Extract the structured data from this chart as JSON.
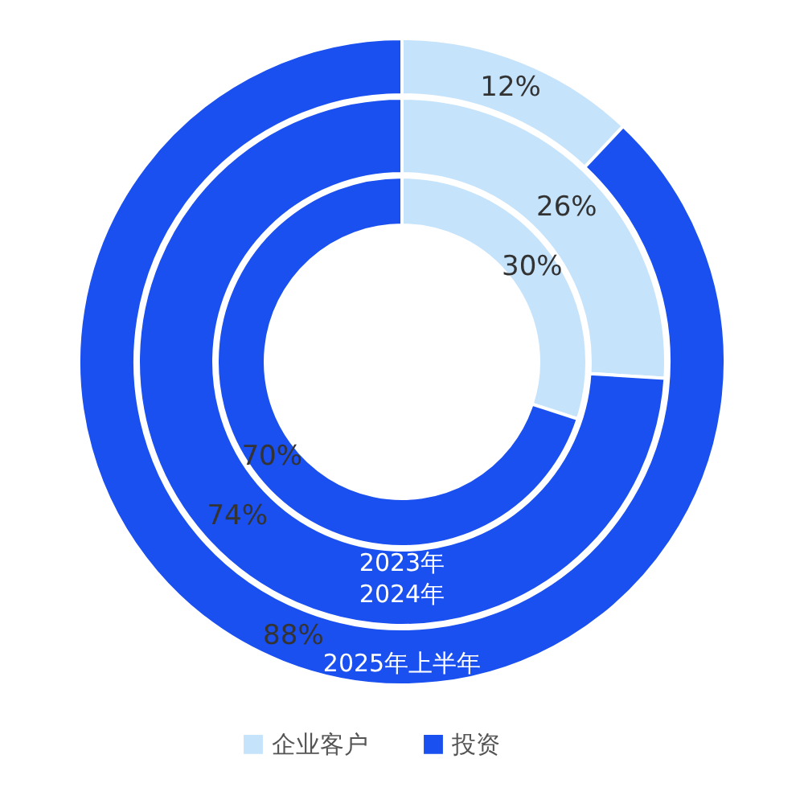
{
  "chart_data": {
    "type": "donut",
    "categories": [
      "企业客户",
      "投资"
    ],
    "colors": [
      "#c5e3fb",
      "#1a4ff0"
    ],
    "series": [
      {
        "name": "2023年",
        "values": [
          30,
          70
        ],
        "value_labels": [
          "30%",
          "70%"
        ]
      },
      {
        "name": "2024年",
        "values": [
          26,
          74
        ],
        "value_labels": [
          "26%",
          "74%"
        ]
      },
      {
        "name": "2025年上半年",
        "values": [
          12,
          88
        ],
        "value_labels": [
          "12%",
          "88%"
        ]
      }
    ],
    "legend": "bottom"
  }
}
